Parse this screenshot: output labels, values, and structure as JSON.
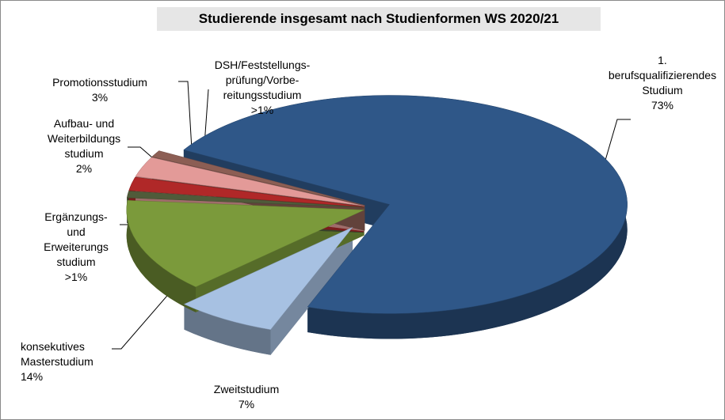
{
  "chart_data": {
    "type": "pie",
    "title": "Studierende insgesamt nach Studienformen WS 2020/21",
    "categories": [
      "1.\nberufsqualifizierendes\nStudium",
      "Zweitstudium",
      "konsekutives\nMasterstudium",
      "Ergänzungs-\nund\nErweiterungs\nstudium",
      "Aufbau- und\nWeiterbildungs\nstudium",
      "Promotionsstudium",
      "DSH/Feststellungs-\nprüfung/Vorbe-\nreitungsstudium"
    ],
    "values": [
      73,
      7,
      14,
      1,
      2,
      3,
      1
    ],
    "value_labels": [
      "73%",
      "7%",
      "14%",
      ">1%",
      "2%",
      "3%",
      ">1%"
    ],
    "colors": [
      "#2f5788",
      "#a7c1e2",
      "#7b9a3b",
      "#505b3a",
      "#b02828",
      "#e39a98",
      "#8c5e54"
    ]
  }
}
